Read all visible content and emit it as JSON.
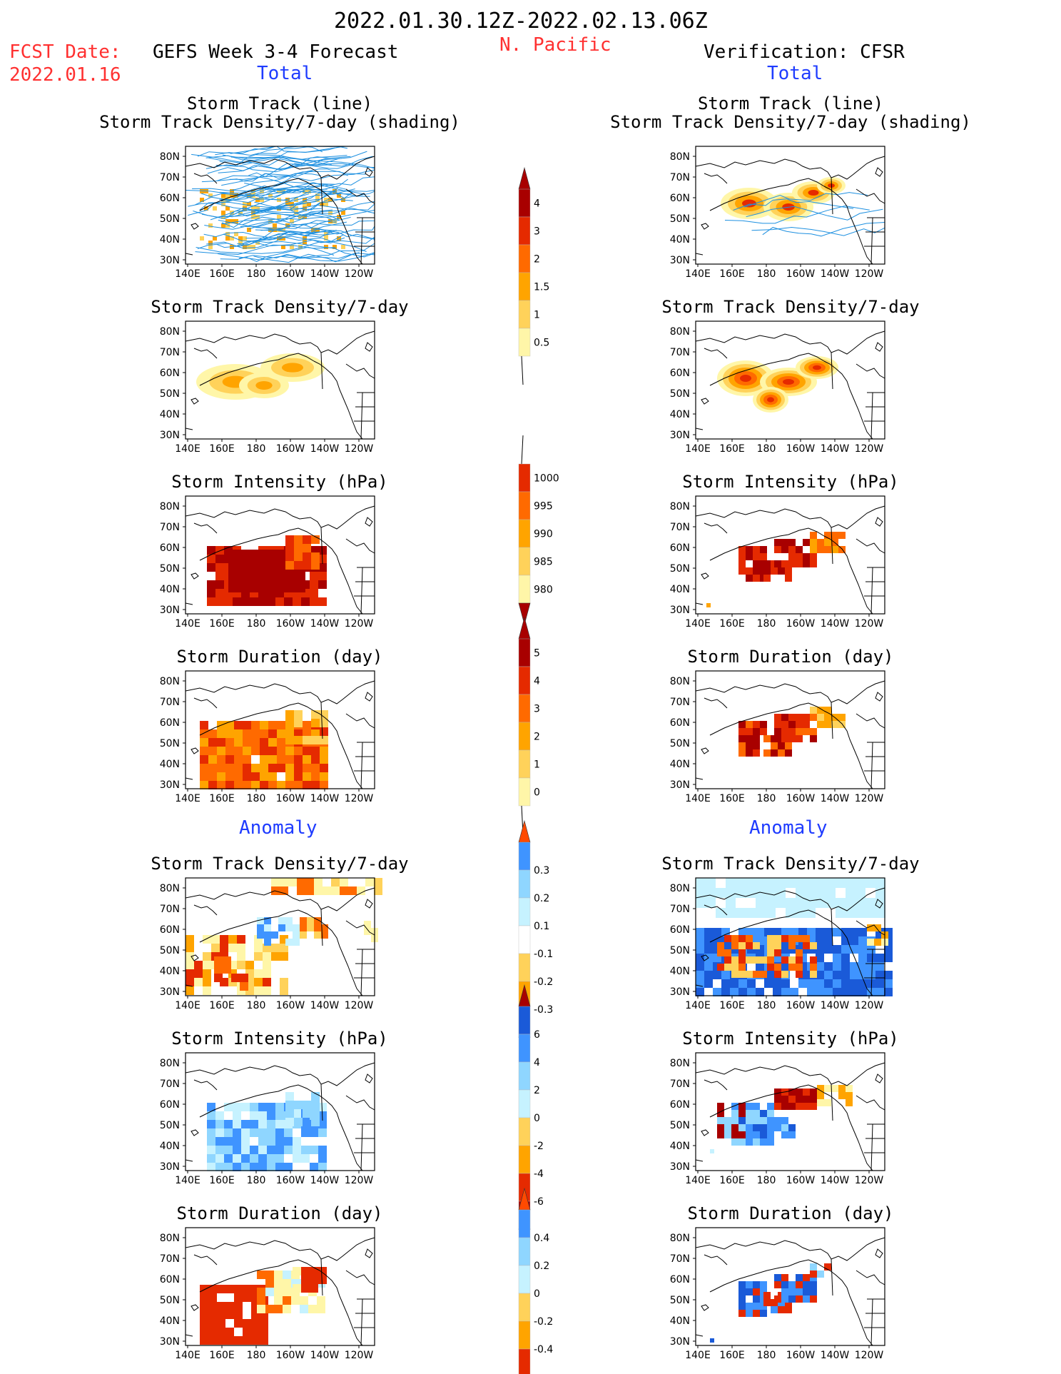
{
  "header": {
    "date_range": "2022.01.30.12Z-2022.02.13.06Z",
    "region": "N. Pacific",
    "fcst_date_label": "FCST Date:",
    "fcst_date": "2022.01.16",
    "left_title": "GEFS Week 3-4 Forecast",
    "right_title": "Verification: CFSR",
    "total_label": "Total",
    "anomaly_label": "Anomaly"
  },
  "axes": {
    "lon_ticks": [
      "140E",
      "160E",
      "180",
      "160W",
      "140W",
      "120W"
    ],
    "lat_ticks": [
      "80N",
      "70N",
      "60N",
      "50N",
      "40N",
      "30N"
    ]
  },
  "colors": {
    "track_line": "#1e90e0",
    "land_outline": "#000000",
    "positive_scale": [
      "#fff6a8",
      "#ffd25a",
      "#ffa400",
      "#ff6a00",
      "#e52a00",
      "#a80000"
    ],
    "negative_scale": [
      "#c6f2ff",
      "#8fd6ff",
      "#3f94ff",
      "#1a5ad8"
    ]
  },
  "chart_data": [
    {
      "id": "fc-track",
      "type": "heatmap",
      "column": "forecast",
      "section": "total",
      "title": "Storm Track (line)",
      "subtitle": "Storm Track Density/7-day (shading)",
      "overlay": "track lines"
    },
    {
      "id": "vf-track",
      "type": "heatmap",
      "column": "verification",
      "section": "total",
      "title": "Storm Track (line)",
      "subtitle": "Storm Track Density/7-day (shading)",
      "overlay": "track lines"
    },
    {
      "id": "fc-density",
      "type": "heatmap",
      "column": "forecast",
      "section": "total",
      "title": "Storm Track Density/7-day"
    },
    {
      "id": "vf-density",
      "type": "heatmap",
      "column": "verification",
      "section": "total",
      "title": "Storm Track Density/7-day"
    },
    {
      "id": "fc-intensity",
      "type": "heatmap",
      "column": "forecast",
      "section": "total",
      "title": "Storm Intensity (hPa)"
    },
    {
      "id": "vf-intensity",
      "type": "heatmap",
      "column": "verification",
      "section": "total",
      "title": "Storm Intensity (hPa)"
    },
    {
      "id": "fc-duration",
      "type": "heatmap",
      "column": "forecast",
      "section": "total",
      "title": "Storm Duration (day)"
    },
    {
      "id": "vf-duration",
      "type": "heatmap",
      "column": "verification",
      "section": "total",
      "title": "Storm Duration (day)"
    },
    {
      "id": "fc-density-anom",
      "type": "heatmap",
      "column": "forecast",
      "section": "anomaly",
      "title": "Storm Track Density/7-day"
    },
    {
      "id": "vf-density-anom",
      "type": "heatmap",
      "column": "verification",
      "section": "anomaly",
      "title": "Storm Track Density/7-day"
    },
    {
      "id": "fc-intensity-anom",
      "type": "heatmap",
      "column": "forecast",
      "section": "anomaly",
      "title": "Storm Intensity (hPa)"
    },
    {
      "id": "vf-intensity-anom",
      "type": "heatmap",
      "column": "verification",
      "section": "anomaly",
      "title": "Storm Intensity (hPa)"
    },
    {
      "id": "fc-duration-anom",
      "type": "heatmap",
      "column": "forecast",
      "section": "anomaly",
      "title": "Storm Duration (day)"
    },
    {
      "id": "vf-duration-anom",
      "type": "heatmap",
      "column": "verification",
      "section": "anomaly",
      "title": "Storm Duration (day)"
    }
  ],
  "colorbars": [
    {
      "id": "density",
      "labels": [
        "4",
        "3",
        "2",
        "1.5",
        "1",
        "0.5"
      ]
    },
    {
      "id": "intensity",
      "labels": [
        "1000",
        "995",
        "990",
        "985",
        "980"
      ]
    },
    {
      "id": "duration",
      "labels": [
        "5",
        "4",
        "3",
        "2",
        "1",
        "0"
      ]
    },
    {
      "id": "density_anom",
      "labels": [
        "0.3",
        "0.2",
        "0.1",
        "-0.1",
        "-0.2",
        "-0.3"
      ]
    },
    {
      "id": "intensity_anom",
      "labels": [
        "6",
        "4",
        "2",
        "0",
        "-2",
        "-4",
        "-6"
      ]
    },
    {
      "id": "duration_anom",
      "labels": [
        "0.4",
        "0.2",
        "0",
        "-0.2",
        "-0.4"
      ]
    }
  ]
}
